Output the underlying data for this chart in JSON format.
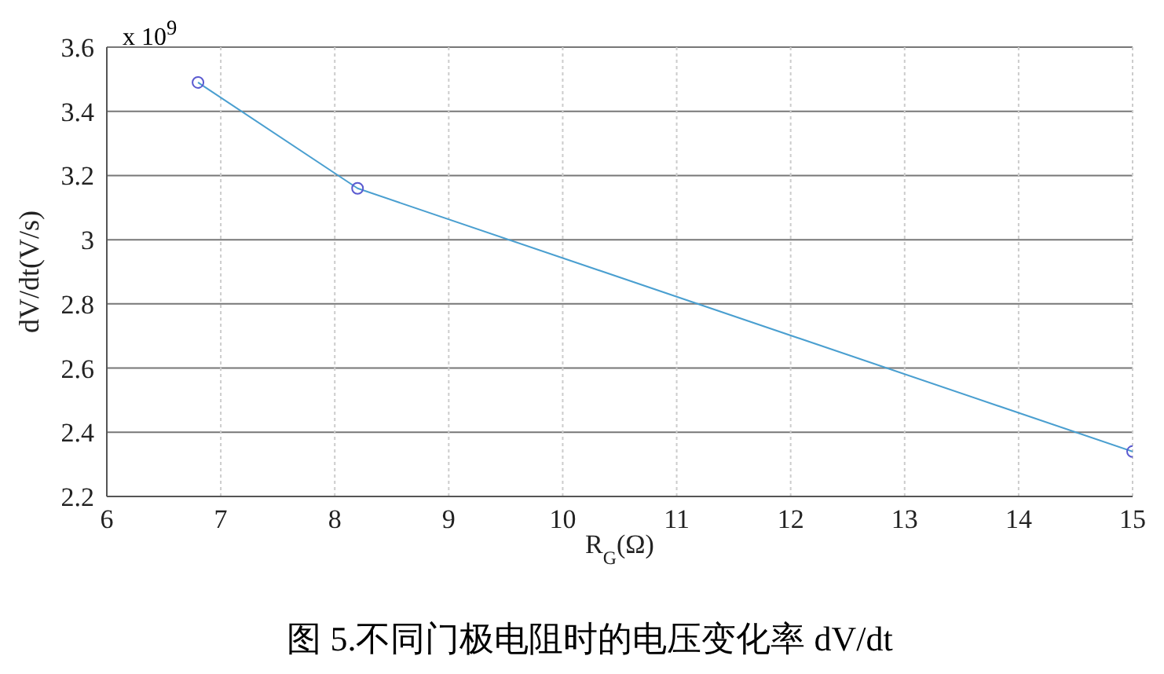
{
  "chart_data": {
    "type": "line",
    "title": "图 5.不同门极电阻时的电压变化率 dV/dt",
    "xlabel": "R$_{G}$(Ω)",
    "ylabel": "dV/dt(V/s)",
    "annotations": [
      "x 10$^{9}$"
    ],
    "x": [
      6.8,
      8.2,
      15
    ],
    "series": [
      {
        "color": "#4a9fd0",
        "values": [
          3.49,
          3.16,
          2.34
        ]
      }
    ],
    "xlim": [
      6,
      15
    ],
    "xticks": [
      6,
      7,
      8,
      9,
      10,
      11,
      12,
      13,
      14,
      15
    ],
    "ylim": [
      2.2,
      3.6
    ],
    "yticks": [
      2.2,
      2.4,
      2.6,
      2.8,
      3,
      3.2,
      3.4,
      3.6
    ],
    "grid": true,
    "marker": "circle",
    "line_style": "solid"
  }
}
